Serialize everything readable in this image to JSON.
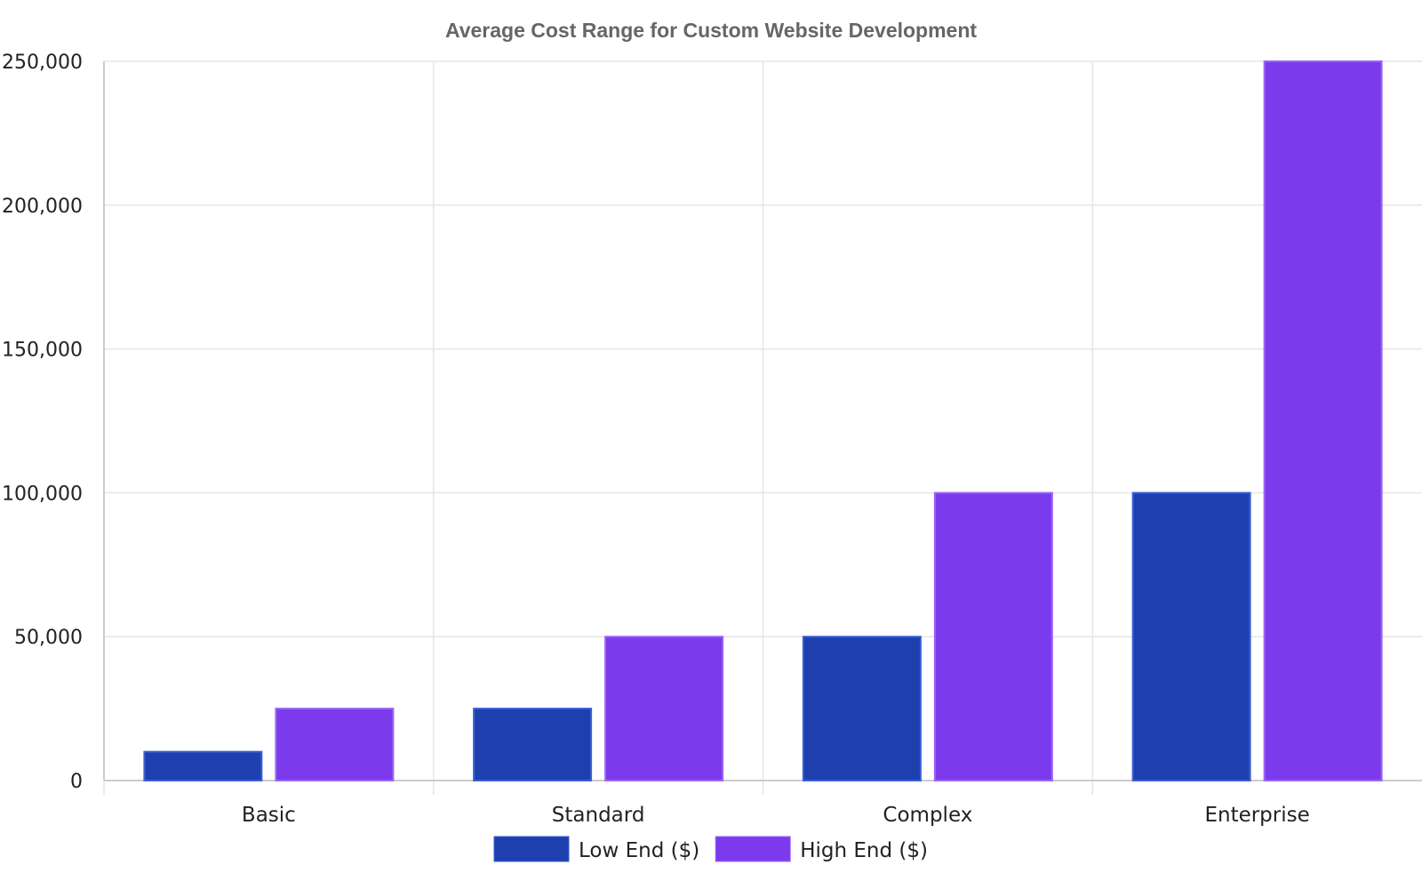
{
  "chart_data": {
    "type": "bar",
    "title": "Average Cost Range for Custom Website Development",
    "categories": [
      "Basic",
      "Standard",
      "Complex",
      "Enterprise"
    ],
    "series": [
      {
        "name": "Low End ($)",
        "values": [
          10000,
          25000,
          50000,
          100000
        ],
        "color": "#1e40af",
        "border_color": "#3b5fd6"
      },
      {
        "name": "High End ($)",
        "values": [
          25000,
          50000,
          100000,
          250000
        ],
        "color": "#7c3aed",
        "border_color": "#9a66f5"
      }
    ],
    "y_ticks": [
      0,
      50000,
      100000,
      150000,
      200000,
      250000
    ],
    "y_tick_labels": [
      "0",
      "50,000",
      "100,000",
      "150,000",
      "200,000",
      "250,000"
    ],
    "ylim": [
      0,
      250000
    ],
    "xlabel": "",
    "ylabel": "",
    "grid": true,
    "legend_position": "bottom-center"
  }
}
